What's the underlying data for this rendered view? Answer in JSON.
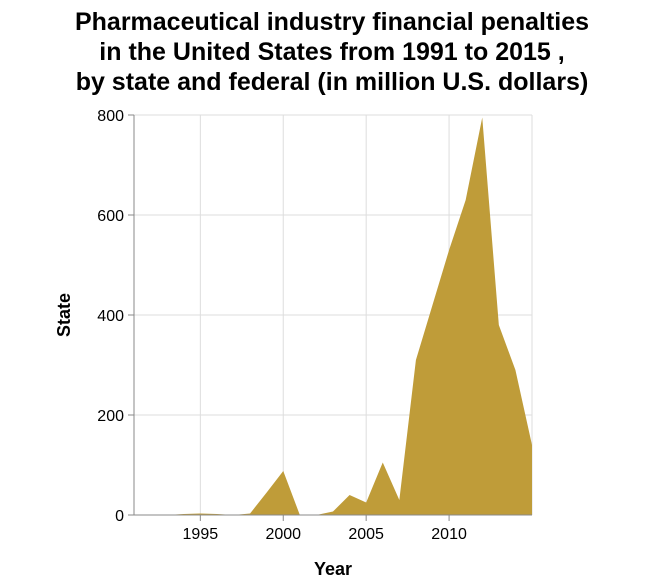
{
  "chart_data": {
    "type": "area",
    "title_lines": [
      "Pharmaceutical industry financial penalties",
      "in the United States from 1991 to 2015 ,",
      "by state and federal (in million U.S. dollars)"
    ],
    "xlabel": "Year",
    "ylabel": "State",
    "xlim": [
      1991,
      2015
    ],
    "ylim": [
      0,
      800
    ],
    "x_ticks": [
      1995,
      2000,
      2005,
      2010
    ],
    "y_ticks": [
      0,
      200,
      400,
      600,
      800
    ],
    "grid": true,
    "series": [
      {
        "color": "#bf9c39",
        "x": [
          1991,
          1992,
          1993,
          1994,
          1995,
          1996,
          1997,
          1998,
          1999,
          2000,
          2001,
          2002,
          2003,
          2004,
          2005,
          2006,
          2007,
          2008,
          2009,
          2010,
          2011,
          2012,
          2013,
          2014,
          2015
        ],
        "values": [
          0,
          0,
          0,
          2,
          3,
          2,
          0,
          3,
          45,
          88,
          0,
          0,
          7,
          40,
          25,
          105,
          30,
          310,
          420,
          530,
          630,
          795,
          380,
          290,
          140
        ]
      }
    ]
  }
}
